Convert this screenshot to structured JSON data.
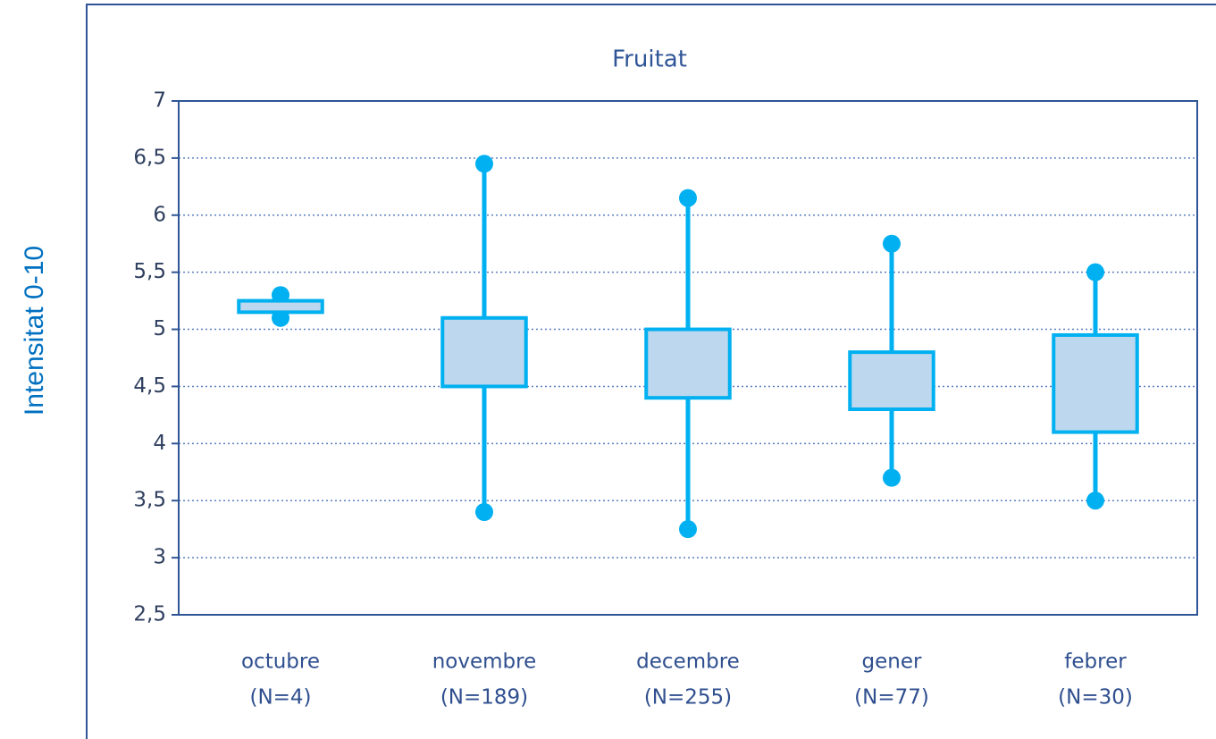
{
  "chart_data": {
    "type": "box",
    "title": "Fruitat",
    "y_label": "Intensitat 0-10",
    "categories": [
      [
        "octubre",
        "(N=4)"
      ],
      [
        "novembre",
        "(N=189)"
      ],
      [
        "decembre",
        "(N=255)"
      ],
      [
        "gener",
        "(N=77)"
      ],
      [
        "febrer",
        "(N=30)"
      ]
    ],
    "min": [
      5.1,
      3.4,
      3.25,
      3.7,
      3.5
    ],
    "q1": [
      5.15,
      4.5,
      4.4,
      4.3,
      4.1
    ],
    "q3": [
      5.25,
      5.1,
      5.0,
      4.8,
      4.95
    ],
    "max": [
      5.3,
      6.45,
      6.15,
      5.75,
      5.5
    ],
    "color": "#00b0f0",
    "fill": "#bdd7ee",
    "ylim": [
      2.5,
      7
    ],
    "yticks": [
      {
        "value": 2.5,
        "label": "2,5"
      },
      3,
      {
        "value": 3.5,
        "label": "3,5"
      },
      4,
      {
        "value": 4.5,
        "label": "4,5"
      },
      5,
      {
        "value": 5.5,
        "label": "5,5"
      },
      6,
      {
        "value": 6.5,
        "label": "6,5"
      },
      7
    ],
    "grid": true
  }
}
